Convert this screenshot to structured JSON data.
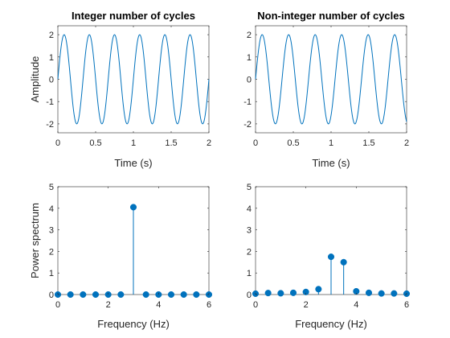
{
  "colors": {
    "line": "#0072BD",
    "axes": "#262626",
    "background": "#ffffff"
  },
  "chart_data": [
    {
      "type": "line",
      "title": "Integer number of cycles",
      "xlabel": "Time (s)",
      "ylabel": "Amplitude",
      "xlim": [
        0,
        2
      ],
      "ylim": [
        -2.4,
        2.4
      ],
      "xticks": [
        0,
        0.5,
        1,
        1.5,
        2
      ],
      "xtick_labels": [
        "0",
        "0.5",
        "1",
        "1.5",
        "2"
      ],
      "yticks": [
        -2,
        -1,
        0,
        1,
        2
      ],
      "ytick_labels": [
        "-2",
        "-1",
        "0",
        "1",
        "2"
      ],
      "signal": {
        "amplitude": 2,
        "frequency_hz": 3,
        "t_start": 0,
        "t_end": 2,
        "samples": 400
      }
    },
    {
      "type": "line",
      "title": "Non-integer number of cycles",
      "xlabel": "Time (s)",
      "ylabel": "",
      "xlim": [
        0,
        2
      ],
      "ylim": [
        -2.4,
        2.4
      ],
      "xticks": [
        0,
        0.5,
        1,
        1.5,
        2
      ],
      "xtick_labels": [
        "0",
        "0.5",
        "1",
        "1.5",
        "2"
      ],
      "yticks": [
        -2,
        -1,
        0,
        1,
        2
      ],
      "ytick_labels": [
        "-2",
        "-1",
        "0",
        "1",
        "2"
      ],
      "signal": {
        "amplitude": 2,
        "frequency_hz": 3,
        "t_start": 0,
        "t_end": 1.9,
        "samples": 400
      }
    },
    {
      "type": "stem",
      "title": "",
      "xlabel": "Frequency (Hz)",
      "ylabel": "Power spectrum",
      "xlim": [
        0,
        6
      ],
      "ylim": [
        0,
        5
      ],
      "xticks": [
        0,
        2,
        4,
        6
      ],
      "xtick_labels": [
        "0",
        "2",
        "4",
        "6"
      ],
      "yticks": [
        0,
        1,
        2,
        3,
        4,
        5
      ],
      "ytick_labels": [
        "0",
        "1",
        "2",
        "3",
        "4",
        "5"
      ],
      "x": [
        0,
        0.5,
        1,
        1.5,
        2,
        2.5,
        3,
        3.5,
        4,
        4.5,
        5,
        5.5,
        6
      ],
      "y": [
        0,
        0,
        0,
        0,
        0,
        0,
        4.05,
        0,
        0,
        0,
        0,
        0,
        0
      ]
    },
    {
      "type": "stem",
      "title": "",
      "xlabel": "Frequency (Hz)",
      "ylabel": "",
      "xlim": [
        0,
        6
      ],
      "ylim": [
        0,
        5
      ],
      "xticks": [
        0,
        2,
        4,
        6
      ],
      "xtick_labels": [
        "0",
        "2",
        "4",
        "6"
      ],
      "yticks": [
        0,
        1,
        2,
        3,
        4,
        5
      ],
      "ytick_labels": [
        "0",
        "1",
        "2",
        "3",
        "4",
        "5"
      ],
      "x": [
        0,
        0.5,
        1,
        1.5,
        2,
        2.5,
        3,
        3.5,
        4,
        4.5,
        5,
        5.5,
        6
      ],
      "y": [
        0.04,
        0.07,
        0.06,
        0.08,
        0.12,
        0.25,
        1.75,
        1.5,
        0.15,
        0.08,
        0.05,
        0.05,
        0.04
      ]
    }
  ]
}
